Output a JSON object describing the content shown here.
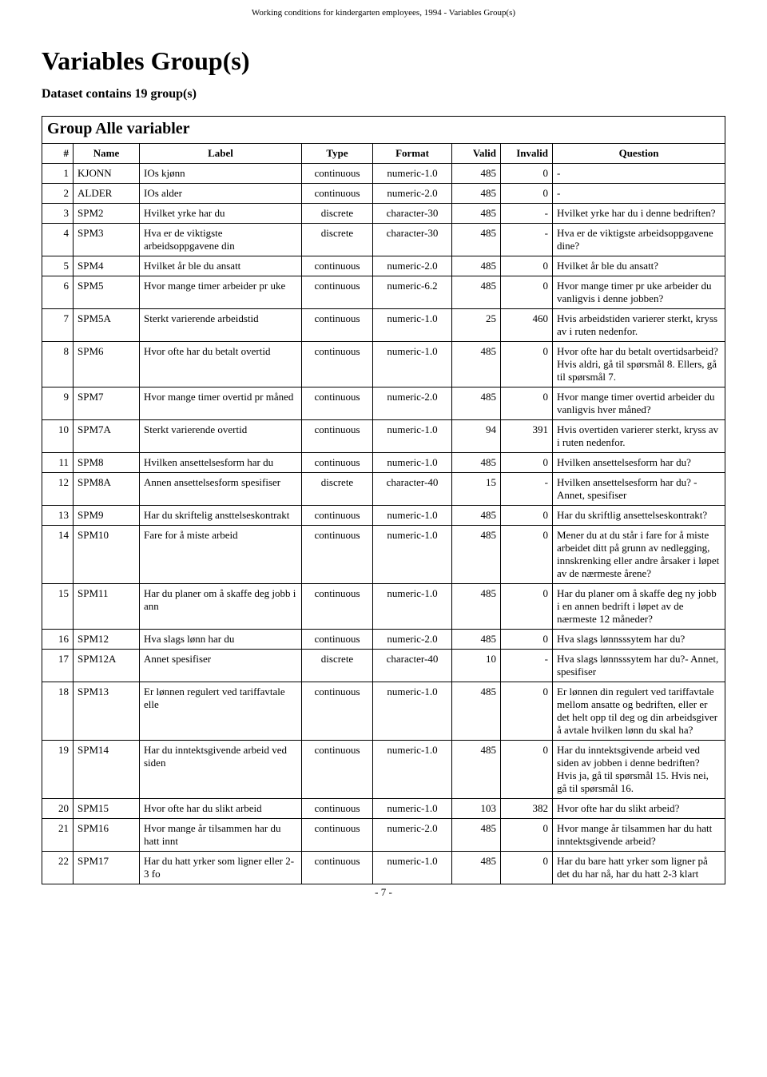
{
  "header": "Working conditions for kindergarten employees, 1994 - Variables Group(s)",
  "title": "Variables Group(s)",
  "subtitle": "Dataset contains 19 group(s)",
  "group_title": "Group Alle variabler",
  "footer": "- 7 -",
  "columns": [
    "#",
    "Name",
    "Label",
    "Type",
    "Format",
    "Valid",
    "Invalid",
    "Question"
  ],
  "rows": [
    {
      "n": "1",
      "name": "KJONN",
      "label": "IOs kjønn",
      "type": "continuous",
      "fmt": "numeric-1.0",
      "valid": "485",
      "inv": "0",
      "q": "-"
    },
    {
      "n": "2",
      "name": "ALDER",
      "label": "IOs alder",
      "type": "continuous",
      "fmt": "numeric-2.0",
      "valid": "485",
      "inv": "0",
      "q": "-"
    },
    {
      "n": "3",
      "name": "SPM2",
      "label": "Hvilket yrke har du",
      "type": "discrete",
      "fmt": "character-30",
      "valid": "485",
      "inv": "-",
      "q": "Hvilket yrke har du i denne bedriften?"
    },
    {
      "n": "4",
      "name": "SPM3",
      "label": "Hva er de viktigste arbeidsoppgavene din",
      "type": "discrete",
      "fmt": "character-30",
      "valid": "485",
      "inv": "-",
      "q": "Hva er de viktigste arbeidsoppgavene dine?"
    },
    {
      "n": "5",
      "name": "SPM4",
      "label": "Hvilket år ble du ansatt",
      "type": "continuous",
      "fmt": "numeric-2.0",
      "valid": "485",
      "inv": "0",
      "q": "Hvilket år ble du ansatt?"
    },
    {
      "n": "6",
      "name": "SPM5",
      "label": "Hvor mange timer arbeider pr uke",
      "type": "continuous",
      "fmt": "numeric-6.2",
      "valid": "485",
      "inv": "0",
      "q": "Hvor mange timer pr uke arbeider du vanligvis i denne jobben?"
    },
    {
      "n": "7",
      "name": "SPM5A",
      "label": "Sterkt varierende arbeidstid",
      "type": "continuous",
      "fmt": "numeric-1.0",
      "valid": "25",
      "inv": "460",
      "q": "Hvis arbeidstiden varierer sterkt, kryss av i ruten nedenfor."
    },
    {
      "n": "8",
      "name": "SPM6",
      "label": "Hvor ofte har du betalt overtid",
      "type": "continuous",
      "fmt": "numeric-1.0",
      "valid": "485",
      "inv": "0",
      "q": "Hvor ofte har du betalt overtidsarbeid? Hvis aldri, gå til spørsmål 8. Ellers, gå til spørsmål 7."
    },
    {
      "n": "9",
      "name": "SPM7",
      "label": "Hvor mange timer overtid pr måned",
      "type": "continuous",
      "fmt": "numeric-2.0",
      "valid": "485",
      "inv": "0",
      "q": "Hvor mange timer overtid arbeider du vanligvis hver måned?"
    },
    {
      "n": "10",
      "name": "SPM7A",
      "label": "Sterkt varierende overtid",
      "type": "continuous",
      "fmt": "numeric-1.0",
      "valid": "94",
      "inv": "391",
      "q": "Hvis overtiden varierer sterkt, kryss av i ruten nedenfor."
    },
    {
      "n": "11",
      "name": "SPM8",
      "label": "Hvilken ansettelsesform har du",
      "type": "continuous",
      "fmt": "numeric-1.0",
      "valid": "485",
      "inv": "0",
      "q": "Hvilken ansettelsesform har du?"
    },
    {
      "n": "12",
      "name": "SPM8A",
      "label": "Annen ansettelsesform spesifiser",
      "type": "discrete",
      "fmt": "character-40",
      "valid": "15",
      "inv": "-",
      "q": "Hvilken ansettelsesform har du? - Annet, spesifiser"
    },
    {
      "n": "13",
      "name": "SPM9",
      "label": "Har du skriftelig ansttelseskontrakt",
      "type": "continuous",
      "fmt": "numeric-1.0",
      "valid": "485",
      "inv": "0",
      "q": "Har du skriftlig ansettelseskontrakt?"
    },
    {
      "n": "14",
      "name": "SPM10",
      "label": "Fare for å miste arbeid",
      "type": "continuous",
      "fmt": "numeric-1.0",
      "valid": "485",
      "inv": "0",
      "q": "Mener du at du står i fare for å miste arbeidet ditt på grunn av nedlegging, innskrenking eller andre årsaker i løpet av de nærmeste årene?"
    },
    {
      "n": "15",
      "name": "SPM11",
      "label": "Har du planer om å skaffe deg jobb i ann",
      "type": "continuous",
      "fmt": "numeric-1.0",
      "valid": "485",
      "inv": "0",
      "q": "Har du planer om å skaffe deg ny jobb i en annen bedrift i løpet av de nærmeste 12 måneder?"
    },
    {
      "n": "16",
      "name": "SPM12",
      "label": "Hva slags lønn har du",
      "type": "continuous",
      "fmt": "numeric-2.0",
      "valid": "485",
      "inv": "0",
      "q": "Hva slags lønnsssytem har du?"
    },
    {
      "n": "17",
      "name": "SPM12A",
      "label": "Annet spesifiser",
      "type": "discrete",
      "fmt": "character-40",
      "valid": "10",
      "inv": "-",
      "q": "Hva slags lønnsssytem har du?- Annet, spesifiser"
    },
    {
      "n": "18",
      "name": "SPM13",
      "label": "Er lønnen regulert ved tariffavtale elle",
      "type": "continuous",
      "fmt": "numeric-1.0",
      "valid": "485",
      "inv": "0",
      "q": "Er lønnen din regulert ved tariffavtale mellom ansatte og bedriften, eller er det helt opp til deg og din arbeidsgiver å avtale hvilken lønn du skal ha?"
    },
    {
      "n": "19",
      "name": "SPM14",
      "label": "Har du inntektsgivende arbeid ved siden",
      "type": "continuous",
      "fmt": "numeric-1.0",
      "valid": "485",
      "inv": "0",
      "q": "Har du inntektsgivende arbeid ved siden av jobben i denne bedriften? Hvis ja, gå til spørsmål 15. Hvis nei, gå til spørsmål 16."
    },
    {
      "n": "20",
      "name": "SPM15",
      "label": "Hvor ofte har du slikt arbeid",
      "type": "continuous",
      "fmt": "numeric-1.0",
      "valid": "103",
      "inv": "382",
      "q": "Hvor ofte har du slikt arbeid?"
    },
    {
      "n": "21",
      "name": "SPM16",
      "label": "Hvor mange år tilsammen har du hatt innt",
      "type": "continuous",
      "fmt": "numeric-2.0",
      "valid": "485",
      "inv": "0",
      "q": "Hvor mange år tilsammen har du hatt inntektsgivende arbeid?"
    },
    {
      "n": "22",
      "name": "SPM17",
      "label": "Har du hatt yrker som ligner eller 2-3 fo",
      "type": "continuous",
      "fmt": "numeric-1.0",
      "valid": "485",
      "inv": "0",
      "q": "Har du bare hatt yrker som ligner på det du har nå, har du hatt 2-3 klart"
    }
  ]
}
